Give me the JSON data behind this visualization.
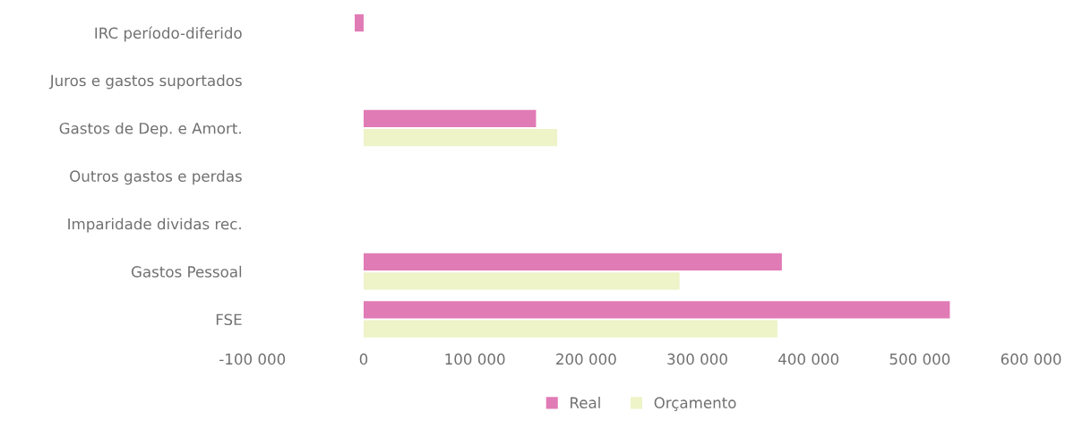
{
  "chart_data": {
    "type": "bar",
    "orientation": "horizontal",
    "categories": [
      "IRC período-diferido",
      "Juros e gastos suportados",
      "Gastos de Dep. e Amort.",
      "Outros gastos e perdas",
      "Imparidade dividas rec.",
      "Gastos Pessoal",
      "FSE"
    ],
    "series": [
      {
        "name": "Real",
        "color": "#e07bb5",
        "values": [
          -8000,
          0,
          155000,
          0,
          0,
          376000,
          527000
        ]
      },
      {
        "name": "Orçamento",
        "color": "#eef3c8",
        "values": [
          0,
          0,
          174000,
          0,
          0,
          284000,
          372000
        ]
      }
    ],
    "xlim": [
      -100000,
      600000
    ],
    "xticks": [
      {
        "value": -100000,
        "label": "-100 000"
      },
      0,
      {
        "value": 100000,
        "label": "100 000"
      },
      {
        "value": 200000,
        "label": "200 000"
      },
      {
        "value": 300000,
        "label": "300 000"
      },
      {
        "value": 400000,
        "label": "400 000"
      },
      {
        "value": 500000,
        "label": "500 000"
      },
      {
        "value": 600000,
        "label": "600 000"
      }
    ],
    "grid": false,
    "legend": "bottom"
  }
}
